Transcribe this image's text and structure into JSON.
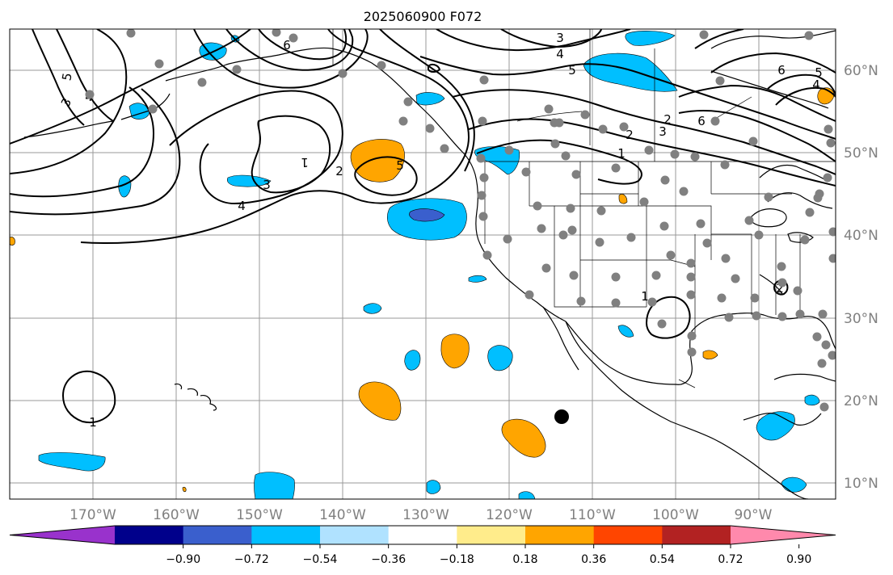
{
  "title": "2025060900 F072",
  "longitude_labels": [
    "170°W",
    "160°W",
    "150°W",
    "140°W",
    "130°W",
    "120°W",
    "110°W",
    "100°W",
    "90°W"
  ],
  "latitude_labels": [
    "60°N",
    "50°N",
    "40°N",
    "30°N",
    "20°N",
    "10°N"
  ],
  "colorbar": {
    "colors": [
      "#9932CC",
      "#00008B",
      "#3A5FCD",
      "#00BFFF",
      "#B0E2FF",
      "#FFFFFF",
      "#FFEC8B",
      "#FFA500",
      "#FF4500",
      "#B22222",
      "#FF89AC"
    ],
    "tick_labels": [
      "−0.90",
      "−0.72",
      "−0.54",
      "−0.36",
      "−0.18",
      "0.18",
      "0.36",
      "0.54",
      "0.72",
      "0.90"
    ]
  },
  "contour_labels": [
    "6",
    "5",
    "4",
    "3",
    "2",
    "1",
    "6",
    "5",
    "4",
    "3",
    "2",
    "1",
    "6",
    "5",
    "4",
    "3",
    "2",
    "1",
    "4",
    "5",
    "1",
    "3",
    "2"
  ],
  "colors": {
    "cyan_fill": "#00BFFF",
    "blue_fill": "#3A5FCD",
    "orange_fill": "#FFA500",
    "station_dot": "#808080",
    "grid": "#999999",
    "contour": "#000000"
  }
}
